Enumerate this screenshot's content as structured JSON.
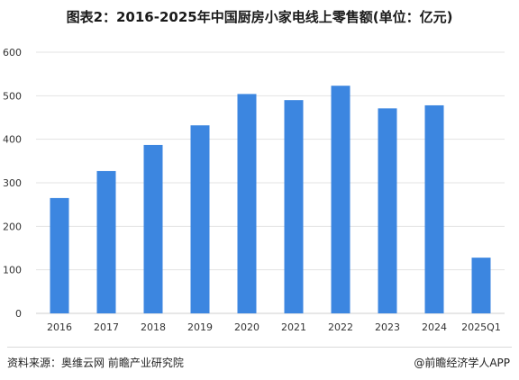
{
  "chart_data": {
    "type": "bar",
    "title": "图表2：2016-2025年中国厨房小家电线上零售额(单位：亿元)",
    "categories": [
      "2016",
      "2017",
      "2018",
      "2019",
      "2020",
      "2021",
      "2022",
      "2023",
      "2024",
      "2025Q1"
    ],
    "values": [
      265,
      327,
      387,
      432,
      504,
      490,
      523,
      471,
      478,
      128
    ],
    "ylim": [
      0,
      600
    ],
    "yticks": [
      0,
      100,
      200,
      300,
      400,
      500,
      600
    ],
    "grid": true,
    "bar_color": "#3c86e0",
    "grid_color": "#e3e3e3"
  },
  "footer": {
    "source": "资料来源：奥维云网 前瞻产业研究院",
    "brand": "@前瞻经济学人APP"
  }
}
